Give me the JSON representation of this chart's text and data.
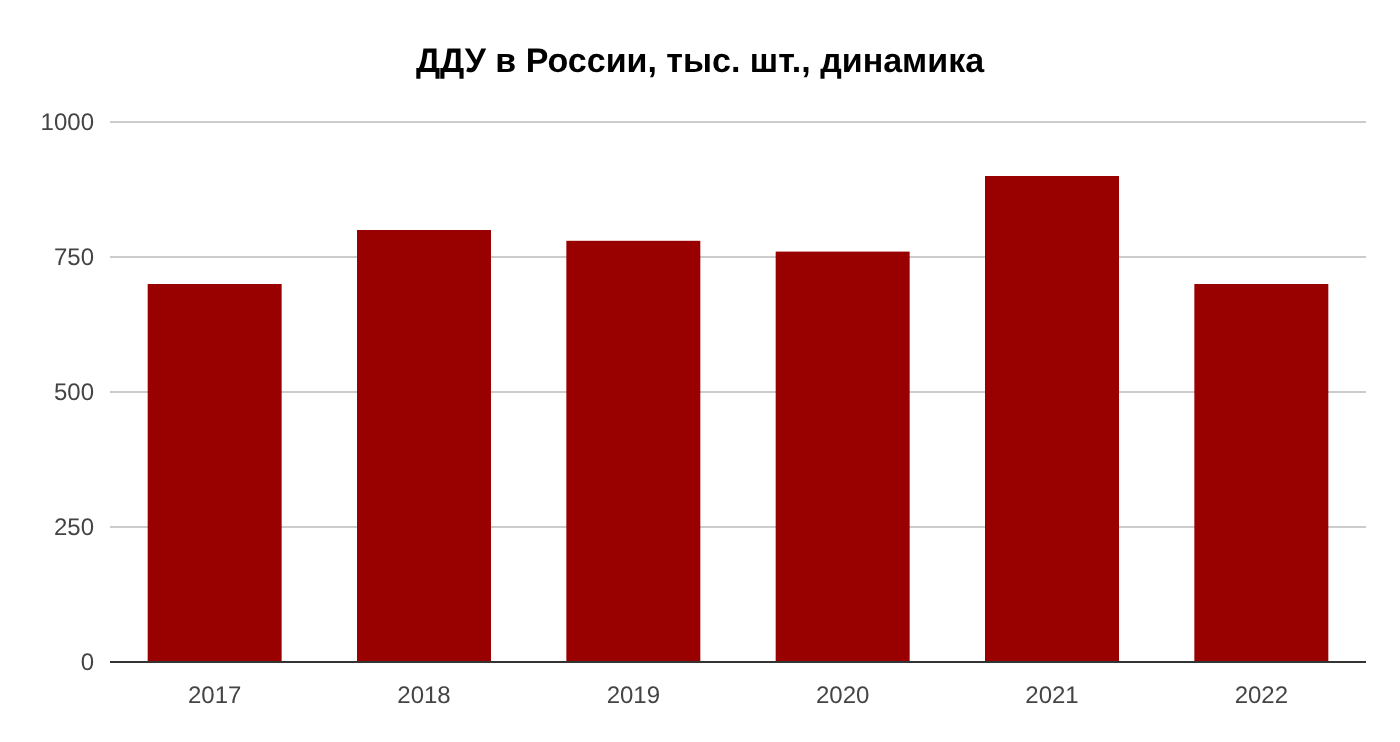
{
  "chart_data": {
    "type": "bar",
    "title": "ДДУ в России, тыс. шт., динамика",
    "categories": [
      "2017",
      "2018",
      "2019",
      "2020",
      "2021",
      "2022"
    ],
    "values": [
      700,
      800,
      780,
      760,
      900,
      700
    ],
    "color": "#990000",
    "ylim": [
      0,
      1000
    ],
    "yticks": [
      0,
      250,
      500,
      750,
      1000
    ],
    "grid": "y"
  }
}
